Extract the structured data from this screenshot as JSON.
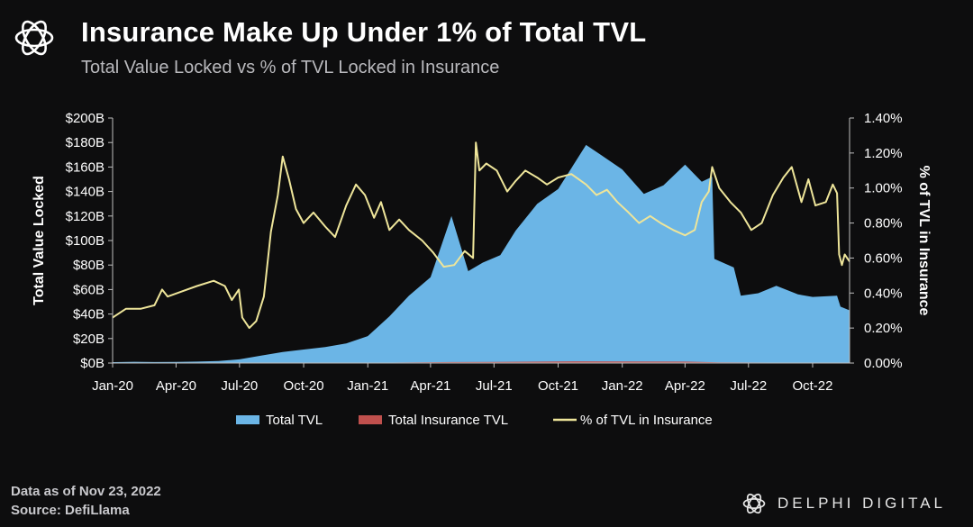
{
  "header": {
    "title": "Insurance Make Up Under 1% of Total TVL",
    "subtitle": "Total Value Locked vs % of TVL Locked in Insurance"
  },
  "footer": {
    "data_as_of": "Data as of Nov 23, 2022",
    "source": "Source: DefiLlama"
  },
  "brand": {
    "name": "DELPHI DIGITAL"
  },
  "colors": {
    "total_tvl": "#6bb5e6",
    "insurance_tvl": "#c0504d",
    "pct_line": "#eee59a",
    "background": "#0d0d0e"
  },
  "chart_data": {
    "type": "area",
    "xlabel": "",
    "ylabel": "Total Value Locked",
    "y2label": "% of TVL in Insurance",
    "x_tick_labels": [
      "Jan-20",
      "Apr-20",
      "Jul-20",
      "Oct-20",
      "Jan-21",
      "Apr-21",
      "Jul-21",
      "Oct-21",
      "Jan-22",
      "Apr-22",
      "Jul-22",
      "Oct-22"
    ],
    "y_tick_labels": [
      "$0B",
      "$20B",
      "$40B",
      "$60B",
      "$80B",
      "$100B",
      "$120B",
      "$140B",
      "$160B",
      "$180B",
      "$200B"
    ],
    "y2_tick_labels": [
      "0.00%",
      "0.20%",
      "0.40%",
      "0.60%",
      "0.80%",
      "1.00%",
      "1.20%",
      "1.40%"
    ],
    "ylim": [
      0,
      200
    ],
    "y2lim": [
      0,
      1.4
    ],
    "legend": {
      "position": "bottom"
    },
    "grid": false,
    "series": [
      {
        "name": "Total TVL",
        "axis": "left",
        "type": "area",
        "points": [
          [
            "2020-01-01",
            0.7
          ],
          [
            "2020-02-01",
            1.0
          ],
          [
            "2020-03-01",
            0.8
          ],
          [
            "2020-04-01",
            0.9
          ],
          [
            "2020-05-01",
            1.2
          ],
          [
            "2020-06-01",
            1.7
          ],
          [
            "2020-07-01",
            3.0
          ],
          [
            "2020-08-01",
            6.0
          ],
          [
            "2020-09-01",
            9.0
          ],
          [
            "2020-10-01",
            11.0
          ],
          [
            "2020-11-01",
            13.0
          ],
          [
            "2020-12-01",
            16.0
          ],
          [
            "2021-01-01",
            22.0
          ],
          [
            "2021-02-01",
            38.0
          ],
          [
            "2021-03-01",
            55.0
          ],
          [
            "2021-04-01",
            70.0
          ],
          [
            "2021-05-01",
            120.0
          ],
          [
            "2021-05-25",
            75.0
          ],
          [
            "2021-06-15",
            82.0
          ],
          [
            "2021-07-10",
            88.0
          ],
          [
            "2021-08-01",
            108.0
          ],
          [
            "2021-09-01",
            130.0
          ],
          [
            "2021-10-01",
            142.0
          ],
          [
            "2021-11-10",
            178.0
          ],
          [
            "2021-12-01",
            170.0
          ],
          [
            "2022-01-01",
            158.0
          ],
          [
            "2022-02-01",
            138.0
          ],
          [
            "2022-03-01",
            145.0
          ],
          [
            "2022-04-01",
            162.0
          ],
          [
            "2022-04-25",
            148.0
          ],
          [
            "2022-05-10",
            152.0
          ],
          [
            "2022-05-13",
            85.0
          ],
          [
            "2022-06-10",
            78.0
          ],
          [
            "2022-06-20",
            55.0
          ],
          [
            "2022-07-15",
            57.0
          ],
          [
            "2022-08-10",
            63.0
          ],
          [
            "2022-09-10",
            56.0
          ],
          [
            "2022-10-01",
            54.0
          ],
          [
            "2022-11-05",
            55.0
          ],
          [
            "2022-11-10",
            46.0
          ],
          [
            "2022-11-23",
            43.0
          ]
        ]
      },
      {
        "name": "Total Insurance TVL",
        "axis": "left",
        "type": "area",
        "points": [
          [
            "2020-01-01",
            0.0
          ],
          [
            "2020-07-01",
            0.01
          ],
          [
            "2020-10-01",
            0.1
          ],
          [
            "2021-01-01",
            0.2
          ],
          [
            "2021-05-01",
            0.8
          ],
          [
            "2021-07-01",
            0.9
          ],
          [
            "2021-11-01",
            1.4
          ],
          [
            "2022-01-01",
            1.3
          ],
          [
            "2022-04-01",
            1.2
          ],
          [
            "2022-05-20",
            0.6
          ],
          [
            "2022-08-01",
            0.4
          ],
          [
            "2022-11-23",
            0.25
          ]
        ]
      },
      {
        "name": "% of TVL in Insurance",
        "axis": "right",
        "type": "line",
        "points": [
          [
            "2020-01-01",
            0.26
          ],
          [
            "2020-01-20",
            0.31
          ],
          [
            "2020-02-10",
            0.31
          ],
          [
            "2020-03-01",
            0.33
          ],
          [
            "2020-03-12",
            0.42
          ],
          [
            "2020-03-20",
            0.38
          ],
          [
            "2020-04-10",
            0.41
          ],
          [
            "2020-05-01",
            0.44
          ],
          [
            "2020-05-25",
            0.47
          ],
          [
            "2020-06-10",
            0.44
          ],
          [
            "2020-06-20",
            0.36
          ],
          [
            "2020-06-30",
            0.42
          ],
          [
            "2020-07-05",
            0.26
          ],
          [
            "2020-07-15",
            0.2
          ],
          [
            "2020-07-25",
            0.24
          ],
          [
            "2020-08-05",
            0.38
          ],
          [
            "2020-08-15",
            0.75
          ],
          [
            "2020-08-25",
            0.96
          ],
          [
            "2020-09-01",
            1.18
          ],
          [
            "2020-09-10",
            1.05
          ],
          [
            "2020-09-20",
            0.88
          ],
          [
            "2020-10-01",
            0.8
          ],
          [
            "2020-10-15",
            0.86
          ],
          [
            "2020-11-01",
            0.78
          ],
          [
            "2020-11-15",
            0.72
          ],
          [
            "2020-12-01",
            0.9
          ],
          [
            "2020-12-15",
            1.02
          ],
          [
            "2020-12-28",
            0.96
          ],
          [
            "2021-01-10",
            0.83
          ],
          [
            "2021-01-20",
            0.92
          ],
          [
            "2021-02-01",
            0.76
          ],
          [
            "2021-02-15",
            0.82
          ],
          [
            "2021-03-01",
            0.76
          ],
          [
            "2021-03-20",
            0.7
          ],
          [
            "2021-04-05",
            0.63
          ],
          [
            "2021-04-20",
            0.55
          ],
          [
            "2021-05-05",
            0.56
          ],
          [
            "2021-05-20",
            0.64
          ],
          [
            "2021-06-01",
            0.6
          ],
          [
            "2021-06-05",
            1.26
          ],
          [
            "2021-06-10",
            1.1
          ],
          [
            "2021-06-20",
            1.14
          ],
          [
            "2021-07-05",
            1.1
          ],
          [
            "2021-07-20",
            0.98
          ],
          [
            "2021-08-01",
            1.04
          ],
          [
            "2021-08-15",
            1.1
          ],
          [
            "2021-09-01",
            1.06
          ],
          [
            "2021-09-15",
            1.02
          ],
          [
            "2021-10-01",
            1.06
          ],
          [
            "2021-10-20",
            1.08
          ],
          [
            "2021-11-10",
            1.02
          ],
          [
            "2021-11-25",
            0.96
          ],
          [
            "2021-12-10",
            0.99
          ],
          [
            "2021-12-25",
            0.92
          ],
          [
            "2022-01-10",
            0.86
          ],
          [
            "2022-01-25",
            0.8
          ],
          [
            "2022-02-10",
            0.84
          ],
          [
            "2022-02-25",
            0.8
          ],
          [
            "2022-03-15",
            0.76
          ],
          [
            "2022-04-01",
            0.73
          ],
          [
            "2022-04-15",
            0.76
          ],
          [
            "2022-04-25",
            0.92
          ],
          [
            "2022-05-05",
            0.98
          ],
          [
            "2022-05-10",
            1.12
          ],
          [
            "2022-05-20",
            1.0
          ],
          [
            "2022-06-05",
            0.92
          ],
          [
            "2022-06-20",
            0.86
          ],
          [
            "2022-07-05",
            0.76
          ],
          [
            "2022-07-20",
            0.8
          ],
          [
            "2022-08-05",
            0.96
          ],
          [
            "2022-08-20",
            1.06
          ],
          [
            "2022-09-01",
            1.12
          ],
          [
            "2022-09-15",
            0.92
          ],
          [
            "2022-09-25",
            1.05
          ],
          [
            "2022-10-05",
            0.9
          ],
          [
            "2022-10-20",
            0.92
          ],
          [
            "2022-10-30",
            1.02
          ],
          [
            "2022-11-05",
            0.97
          ],
          [
            "2022-11-08",
            0.62
          ],
          [
            "2022-11-12",
            0.56
          ],
          [
            "2022-11-16",
            0.62
          ],
          [
            "2022-11-23",
            0.58
          ]
        ]
      }
    ]
  }
}
